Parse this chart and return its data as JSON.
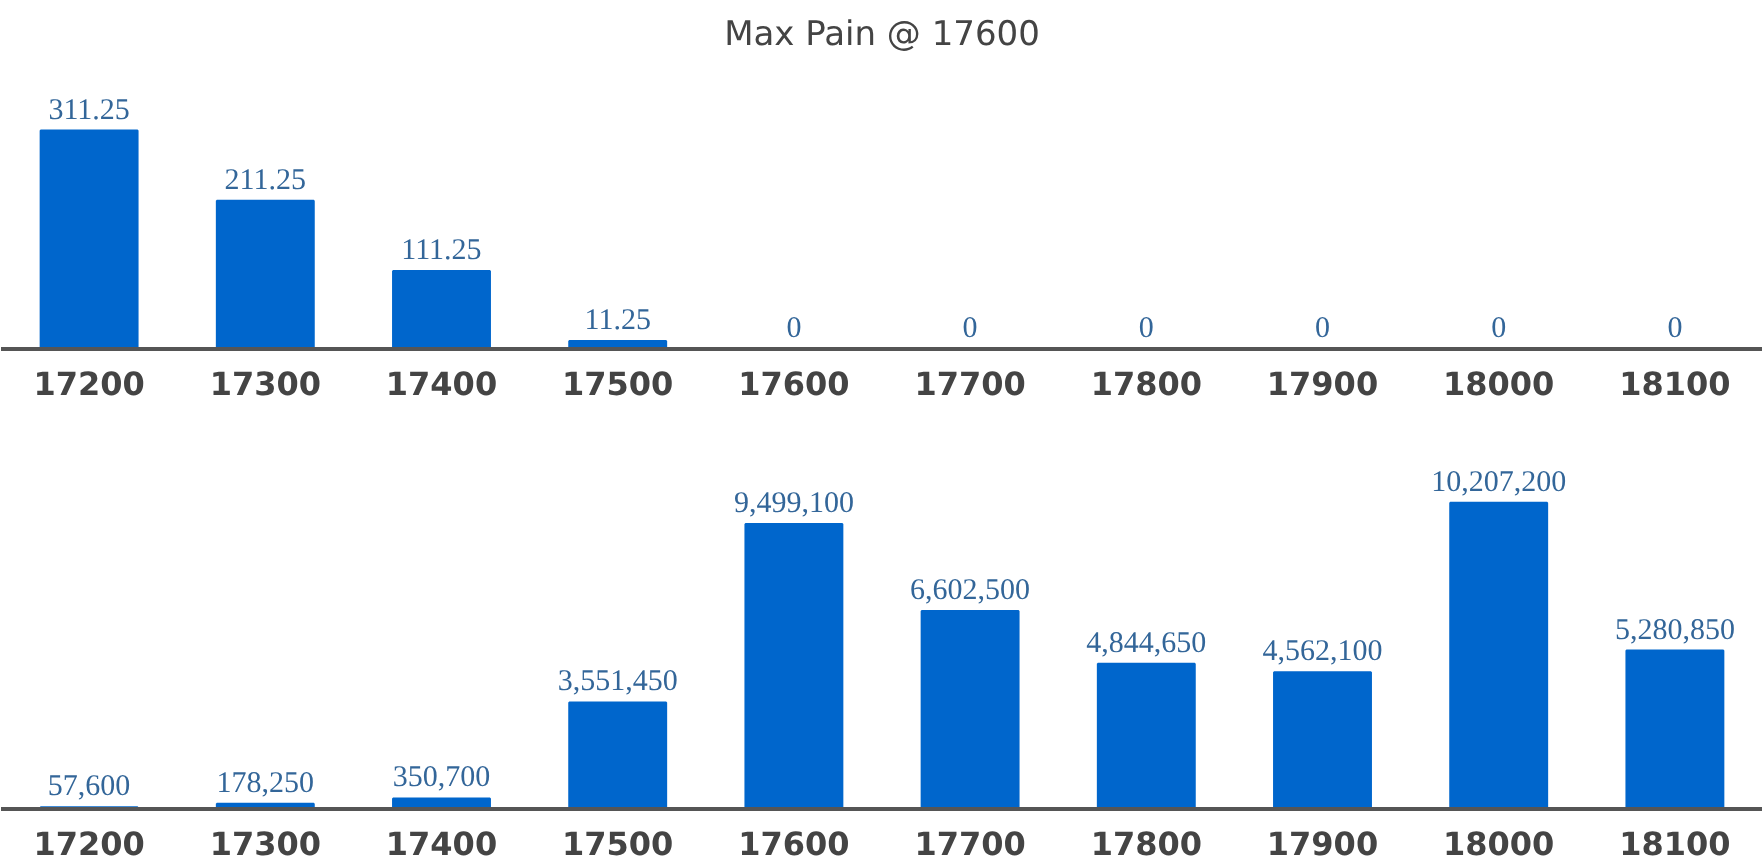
{
  "chart_data": [
    {
      "type": "bar",
      "title": "Max Pain @ 17600",
      "categories": [
        "17200",
        "17300",
        "17400",
        "17500",
        "17600",
        "17700",
        "17800",
        "17900",
        "18000",
        "18100"
      ],
      "values": [
        311.25,
        211.25,
        111.25,
        11.25,
        0,
        0,
        0,
        0,
        0,
        0
      ],
      "value_labels": [
        "311.25",
        "211.25",
        "111.25",
        "11.25",
        "0",
        "0",
        "0",
        "0",
        "0",
        "0"
      ],
      "color": "#0066cc",
      "tick_labels": "x"
    },
    {
      "type": "bar",
      "categories": [
        "17200",
        "17300",
        "17400",
        "17500",
        "17600",
        "17700",
        "17800",
        "17900",
        "18000",
        "18100"
      ],
      "values": [
        57600,
        178250,
        350700,
        3551450,
        9499100,
        6602500,
        4844650,
        4562100,
        10207200,
        5280850
      ],
      "value_labels": [
        "57,600",
        "178,250",
        "350,700",
        "3,551,450",
        "9,499,100",
        "6,602,500",
        "4,844,650",
        "4,562,100",
        "10,207,200",
        "5,280,850"
      ],
      "color": "#0066cc",
      "tick_labels": "x"
    }
  ]
}
